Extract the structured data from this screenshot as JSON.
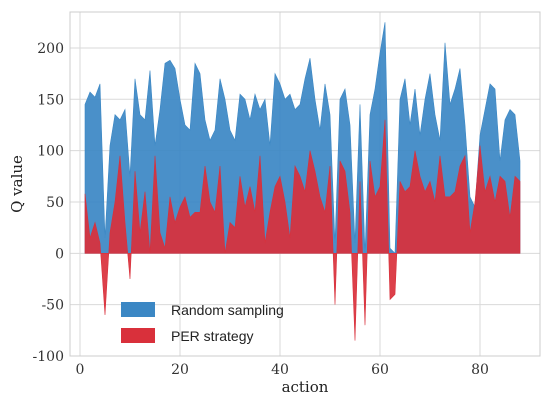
{
  "chart_data": {
    "type": "area",
    "title": "",
    "xlabel": "action",
    "ylabel": "Q value",
    "xlim": [
      -2,
      92
    ],
    "ylim": [
      -100,
      235
    ],
    "xticks": [
      0,
      20,
      40,
      60,
      80
    ],
    "yticks": [
      -100,
      -50,
      0,
      50,
      100,
      150,
      200
    ],
    "grid": true,
    "legend_position": "lower-left",
    "colors": {
      "plot_background": "#ffffff",
      "grid": "#dadada"
    },
    "x": [
      1,
      2,
      3,
      4,
      5,
      6,
      7,
      8,
      9,
      10,
      11,
      12,
      13,
      14,
      15,
      16,
      17,
      18,
      19,
      20,
      21,
      22,
      23,
      24,
      25,
      26,
      27,
      28,
      29,
      30,
      31,
      32,
      33,
      34,
      35,
      36,
      37,
      38,
      39,
      40,
      41,
      42,
      43,
      44,
      45,
      46,
      47,
      48,
      49,
      50,
      51,
      52,
      53,
      54,
      55,
      56,
      57,
      58,
      59,
      60,
      61,
      62,
      63,
      64,
      65,
      66,
      67,
      68,
      69,
      70,
      71,
      72,
      73,
      74,
      75,
      76,
      77,
      78,
      79,
      80,
      81,
      82,
      83,
      84,
      85,
      86,
      87,
      88
    ],
    "series": [
      {
        "name": "Random sampling",
        "color": "#3b87c4",
        "values": [
          145,
          157,
          152,
          165,
          15,
          105,
          135,
          130,
          140,
          75,
          170,
          135,
          130,
          178,
          105,
          140,
          185,
          188,
          180,
          150,
          125,
          120,
          185,
          175,
          130,
          110,
          120,
          170,
          150,
          120,
          110,
          155,
          150,
          130,
          155,
          140,
          150,
          105,
          175,
          165,
          150,
          155,
          140,
          145,
          170,
          190,
          150,
          120,
          165,
          135,
          10,
          150,
          160,
          125,
          10,
          145,
          0,
          135,
          160,
          195,
          225,
          5,
          0,
          150,
          170,
          125,
          160,
          115,
          150,
          175,
          135,
          110,
          205,
          145,
          160,
          180,
          125,
          55,
          45,
          115,
          140,
          165,
          160,
          90,
          130,
          140,
          135,
          90
        ]
      },
      {
        "name": "PER strategy",
        "color": "#d9303b",
        "values": [
          58,
          15,
          30,
          10,
          -60,
          20,
          50,
          95,
          30,
          -25,
          80,
          20,
          60,
          0,
          95,
          20,
          5,
          55,
          30,
          45,
          55,
          35,
          40,
          40,
          85,
          50,
          40,
          85,
          0,
          30,
          25,
          75,
          45,
          65,
          40,
          95,
          10,
          40,
          65,
          75,
          50,
          15,
          85,
          75,
          60,
          100,
          80,
          55,
          40,
          85,
          -50,
          90,
          80,
          40,
          -85,
          70,
          -70,
          90,
          55,
          65,
          130,
          -45,
          -40,
          70,
          60,
          65,
          100,
          75,
          60,
          70,
          50,
          95,
          55,
          55,
          60,
          85,
          95,
          20,
          50,
          105,
          60,
          75,
          50,
          75,
          70,
          35,
          75,
          70
        ]
      }
    ]
  }
}
